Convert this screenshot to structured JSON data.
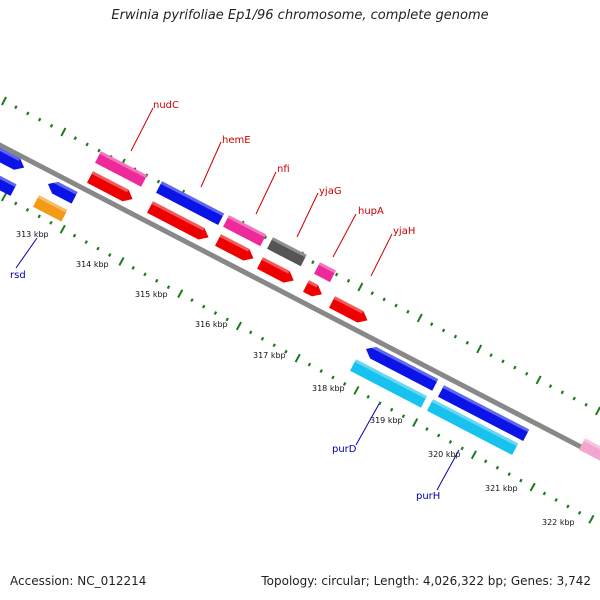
{
  "title": "Erwinia pyrifoliae Ep1/96 chromosome, complete genome",
  "footer": {
    "accession": "Accession: NC_012214",
    "summary": "Topology: circular; Length: 4,026,322 bp; Genes: 3,742"
  },
  "colors": {
    "backbone": "#888888",
    "tick": "#1f7a1f",
    "gene_blue": "#0a14e6",
    "gene_red": "#ee0000",
    "gene_magenta": "#ee2a9a",
    "gene_gray": "#555555",
    "gene_orange": "#f39a16",
    "gene_cyan": "#18c2ee",
    "gene_pink": "#f3a6cf",
    "label_red": "#cc0000",
    "label_blue": "#0000aa"
  },
  "scale": {
    "labels": [
      "313 kbp",
      "314 kbp",
      "315 kbp",
      "316 kbp",
      "317 kbp",
      "318 kbp",
      "319 kbp",
      "320 kbp",
      "321 kbp",
      "322 kbp"
    ]
  },
  "gene_labels": [
    {
      "name": "nudC",
      "color": "red"
    },
    {
      "name": "hemE",
      "color": "red"
    },
    {
      "name": "nfi",
      "color": "red"
    },
    {
      "name": "yjaG",
      "color": "red"
    },
    {
      "name": "hupA",
      "color": "red"
    },
    {
      "name": "yjaH",
      "color": "red"
    },
    {
      "name": "rsd",
      "color": "blue"
    },
    {
      "name": "purD",
      "color": "blue"
    },
    {
      "name": "purH",
      "color": "blue"
    }
  ]
}
